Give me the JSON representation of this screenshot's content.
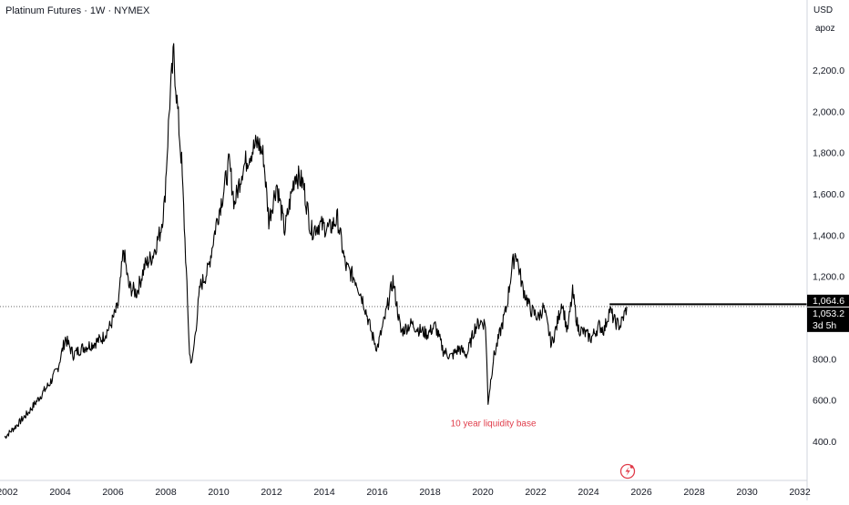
{
  "header": {
    "symbol_title": "Platinum Futures · 1W · NYMEX",
    "currency": "USD",
    "user": "apoz"
  },
  "colors": {
    "price": "#000000",
    "annotation": "#e03c4a",
    "axis_text": "#131722",
    "price_tag_bg": "#000000",
    "price_tag_text": "#ffffff"
  },
  "chart_data": {
    "type": "line",
    "title": "Platinum Futures · 1W · NYMEX",
    "xlabel": "",
    "ylabel": "",
    "xlim": [
      2001.9,
      2030.3
    ],
    "ylim": [
      230,
      2350
    ],
    "x_ticks": [
      "2002",
      "2004",
      "2006",
      "2008",
      "2010",
      "2012",
      "2014",
      "2016",
      "2018",
      "2020",
      "2022",
      "2024",
      "2026",
      "2028",
      "2030",
      "2032"
    ],
    "x_tick_values": [
      2002,
      2004,
      2006,
      2008,
      2010,
      2012,
      2014,
      2016,
      2018,
      2020,
      2022,
      2024,
      2026,
      2028,
      2030,
      2032
    ],
    "y_ticks": [
      "400.0",
      "600.0",
      "800.0",
      "1,000.0",
      "1,200.0",
      "1,400.0",
      "1,600.0",
      "1,800.0",
      "2,000.0",
      "2,200.0"
    ],
    "y_tick_values": [
      400,
      600,
      800,
      1000,
      1200,
      1400,
      1600,
      1800,
      2000,
      2200
    ],
    "grid": false,
    "series": [
      {
        "values": [
          [
            2001.9,
            420
          ],
          [
            2002.3,
            470
          ],
          [
            2002.8,
            540
          ],
          [
            2003.2,
            610
          ],
          [
            2003.6,
            680
          ],
          [
            2003.9,
            750
          ],
          [
            2004.2,
            900
          ],
          [
            2004.5,
            820
          ],
          [
            2004.8,
            850
          ],
          [
            2005.2,
            870
          ],
          [
            2005.6,
            900
          ],
          [
            2005.9,
            960
          ],
          [
            2006.2,
            1060
          ],
          [
            2006.4,
            1330
          ],
          [
            2006.6,
            1150
          ],
          [
            2006.9,
            1120
          ],
          [
            2007.2,
            1250
          ],
          [
            2007.5,
            1300
          ],
          [
            2007.8,
            1420
          ],
          [
            2007.95,
            1550
          ],
          [
            2008.15,
            2050
          ],
          [
            2008.3,
            2280
          ],
          [
            2008.45,
            2000
          ],
          [
            2008.6,
            1750
          ],
          [
            2008.75,
            1300
          ],
          [
            2008.9,
            820
          ],
          [
            2009.0,
            780
          ],
          [
            2009.3,
            1150
          ],
          [
            2009.6,
            1230
          ],
          [
            2009.9,
            1450
          ],
          [
            2010.2,
            1620
          ],
          [
            2010.4,
            1750
          ],
          [
            2010.6,
            1550
          ],
          [
            2010.9,
            1720
          ],
          [
            2011.2,
            1800
          ],
          [
            2011.5,
            1850
          ],
          [
            2011.7,
            1780
          ],
          [
            2011.9,
            1470
          ],
          [
            2012.2,
            1650
          ],
          [
            2012.5,
            1420
          ],
          [
            2012.9,
            1700
          ],
          [
            2013.2,
            1650
          ],
          [
            2013.5,
            1420
          ],
          [
            2013.8,
            1450
          ],
          [
            2014.2,
            1430
          ],
          [
            2014.5,
            1480
          ],
          [
            2014.8,
            1250
          ],
          [
            2015.2,
            1180
          ],
          [
            2015.5,
            1070
          ],
          [
            2015.8,
            920
          ],
          [
            2016.0,
            850
          ],
          [
            2016.3,
            1000
          ],
          [
            2016.6,
            1180
          ],
          [
            2016.9,
            930
          ],
          [
            2017.3,
            970
          ],
          [
            2017.6,
            940
          ],
          [
            2017.9,
            920
          ],
          [
            2018.2,
            960
          ],
          [
            2018.5,
            840
          ],
          [
            2018.8,
            810
          ],
          [
            2019.1,
            850
          ],
          [
            2019.4,
            820
          ],
          [
            2019.7,
            950
          ],
          [
            2019.9,
            980
          ],
          [
            2020.1,
            970
          ],
          [
            2020.2,
            590
          ],
          [
            2020.4,
            800
          ],
          [
            2020.6,
            900
          ],
          [
            2020.9,
            1050
          ],
          [
            2021.1,
            1240
          ],
          [
            2021.25,
            1320
          ],
          [
            2021.5,
            1150
          ],
          [
            2021.8,
            1040
          ],
          [
            2022.1,
            1000
          ],
          [
            2022.3,
            1050
          ],
          [
            2022.6,
            870
          ],
          [
            2022.8,
            960
          ],
          [
            2023.0,
            1080
          ],
          [
            2023.2,
            930
          ],
          [
            2023.4,
            1120
          ],
          [
            2023.6,
            950
          ],
          [
            2023.9,
            920
          ],
          [
            2024.1,
            900
          ],
          [
            2024.4,
            960
          ],
          [
            2024.6,
            940
          ],
          [
            2024.8,
            1040
          ],
          [
            2025.0,
            980
          ],
          [
            2025.2,
            960
          ],
          [
            2025.4,
            1030
          ],
          [
            2025.45,
            1053.2
          ]
        ]
      }
    ],
    "last_price": 1053.2,
    "alert_level": 1064.6,
    "price_tags": [
      "1,064.6",
      "1,053.2"
    ],
    "countdown": "3d 5h",
    "annotations": [
      {
        "text": "10 year liquidity base",
        "x": 2020.4,
        "y": 490
      }
    ]
  }
}
